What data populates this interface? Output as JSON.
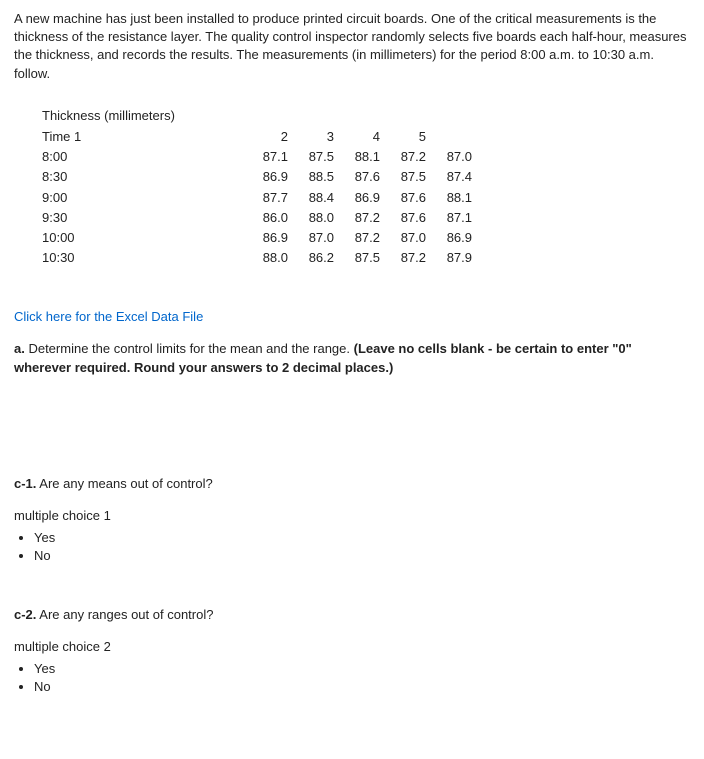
{
  "intro": "A new machine has just been installed to produce printed circuit boards. One of the critical measurements is the thickness of the resistance layer. The quality control inspector randomly selects five boards each half-hour, measures the thickness, and records the results. The measurements (in millimeters) for the period 8:00 a.m. to 10:30 a.m. follow.",
  "table": {
    "caption": "Thickness (millimeters)",
    "time_label": "Time",
    "col_headers": [
      "1",
      "2",
      "3",
      "4",
      "5"
    ],
    "rows": [
      {
        "time": "8:00",
        "v": [
          "87.1",
          "87.5",
          "88.1",
          "87.2",
          "87.0"
        ]
      },
      {
        "time": "8:30",
        "v": [
          "86.9",
          "88.5",
          "87.6",
          "87.5",
          "87.4"
        ]
      },
      {
        "time": "9:00",
        "v": [
          "87.7",
          "88.4",
          "86.9",
          "87.6",
          "88.1"
        ]
      },
      {
        "time": "9:30",
        "v": [
          "86.0",
          "88.0",
          "87.2",
          "87.6",
          "87.1"
        ]
      },
      {
        "time": "10:00",
        "v": [
          "86.9",
          "87.0",
          "87.2",
          "87.0",
          "86.9"
        ]
      },
      {
        "time": "10:30",
        "v": [
          "88.0",
          "86.2",
          "87.5",
          "87.2",
          "87.9"
        ]
      }
    ]
  },
  "excel_link": "Click here for the Excel Data File",
  "part_a": {
    "label": "a.",
    "text_plain": " Determine the control limits for the mean and the range. ",
    "text_bold": "(Leave no cells blank - be certain to enter \"0\" wherever required. Round your answers to 2 decimal places.)"
  },
  "c1": {
    "label": "c-1.",
    "question": " Are any means out of control?",
    "mc_label": "multiple choice 1",
    "options": [
      "Yes",
      "No"
    ]
  },
  "c2": {
    "label": "c-2.",
    "question": " Are any ranges out of control?",
    "mc_label": "multiple choice 2",
    "options": [
      "Yes",
      "No"
    ]
  }
}
